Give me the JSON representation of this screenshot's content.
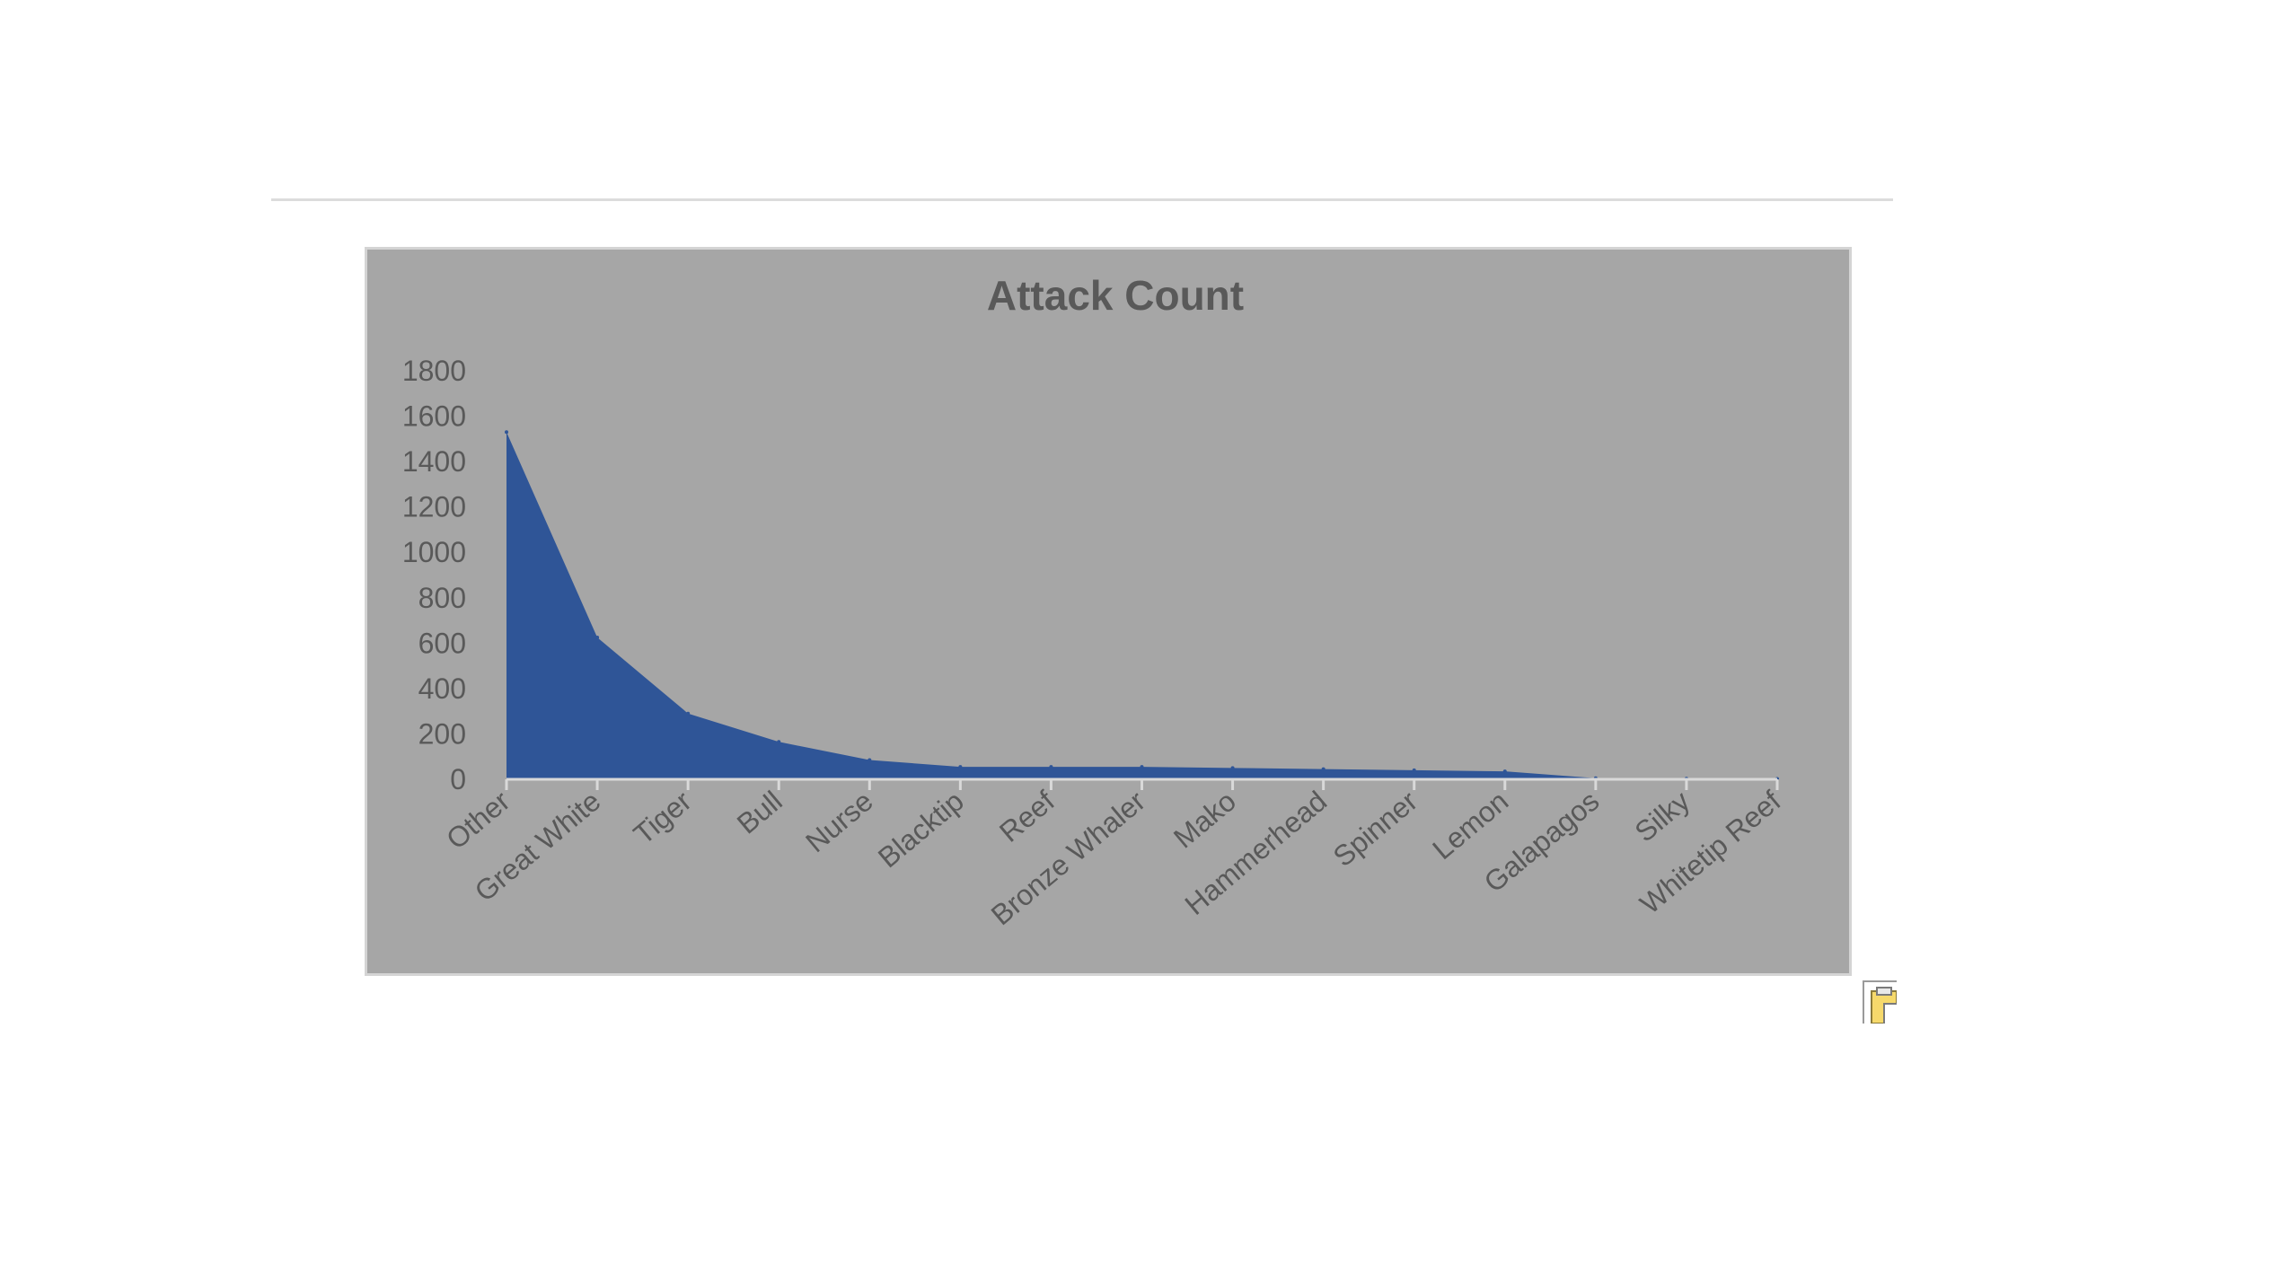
{
  "chart_data": {
    "type": "area",
    "title": "Attack Count",
    "xlabel": "",
    "ylabel": "",
    "categories": [
      "Other",
      "Great White",
      "Tiger",
      "Bull",
      "Nurse",
      "Blacktip",
      "Reef",
      "Bronze Whaler",
      "Mako",
      "Hammerhead",
      "Spinner",
      "Lemon",
      "Galapagos",
      "Silky",
      "Whitetip Reef"
    ],
    "values": [
      1530,
      625,
      290,
      165,
      85,
      55,
      55,
      55,
      50,
      45,
      40,
      35,
      5,
      3,
      2
    ],
    "ylim": [
      0,
      1800
    ],
    "yticks": [
      0,
      200,
      400,
      600,
      800,
      1000,
      1200,
      1400,
      1600,
      1800
    ],
    "grid": false,
    "legend": "none",
    "colors": {
      "area": "#2f5597",
      "plot_background": "#a6a6a6",
      "axis": "#d9d9d9",
      "text": "#595959"
    }
  },
  "icons": {
    "paste_options": "paste-options-icon"
  }
}
